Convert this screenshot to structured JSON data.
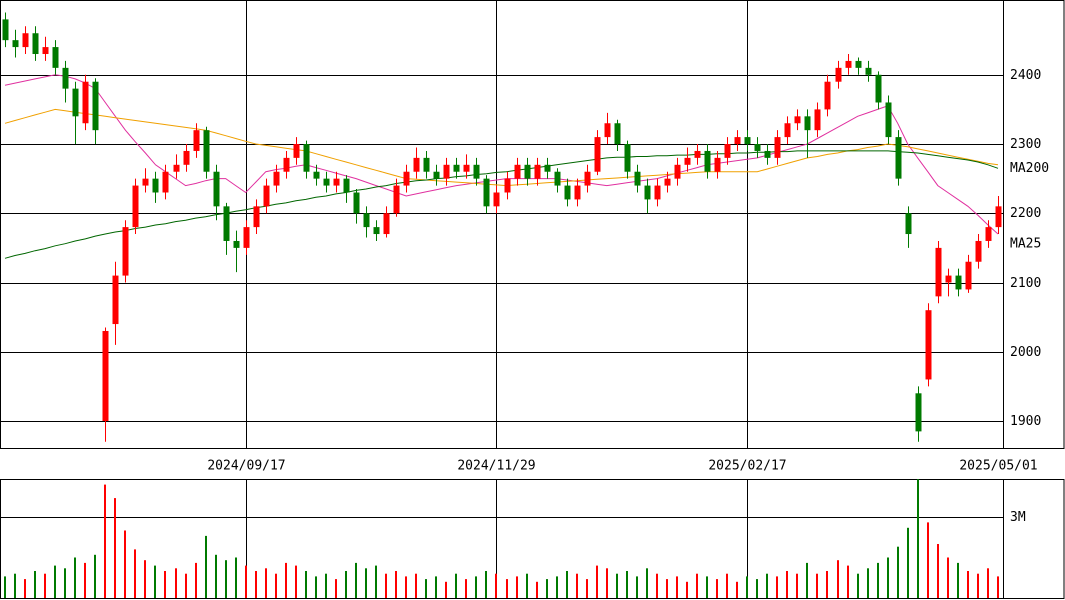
{
  "chart_data": {
    "type": "candlestick",
    "categories": [
      null,
      null,
      null,
      null,
      null,
      null,
      null,
      null,
      null,
      null,
      null,
      null,
      null,
      null,
      null,
      null,
      null,
      null,
      null,
      null,
      null,
      null,
      null,
      null,
      "2024/09/17",
      null,
      null,
      null,
      null,
      null,
      null,
      null,
      null,
      null,
      null,
      null,
      null,
      null,
      null,
      null,
      null,
      null,
      null,
      null,
      null,
      null,
      null,
      null,
      null,
      "2024/11/29",
      null,
      null,
      null,
      null,
      null,
      null,
      null,
      null,
      null,
      null,
      null,
      null,
      null,
      null,
      null,
      null,
      null,
      null,
      null,
      null,
      null,
      null,
      null,
      null,
      "2025/02/17",
      null,
      null,
      null,
      null,
      null,
      null,
      null,
      null,
      null,
      null,
      null,
      null,
      null,
      null,
      null,
      null,
      null,
      null,
      null,
      null,
      null,
      null,
      null,
      null,
      "2025/05/01"
    ],
    "open": [
      2480,
      2450,
      2440,
      2460,
      2430,
      2440,
      2410,
      2380,
      2330,
      2390,
      1900,
      2040,
      2110,
      2180,
      2240,
      2250,
      2230,
      2260,
      2270,
      2290,
      2320,
      2260,
      2210,
      2160,
      2150,
      2180,
      2210,
      2240,
      2260,
      2280,
      2300,
      2260,
      2250,
      2240,
      2250,
      2230,
      2200,
      2180,
      2170,
      2200,
      2240,
      2260,
      2280,
      2260,
      2250,
      2270,
      2260,
      2270,
      2250,
      2210,
      2230,
      2250,
      2270,
      2250,
      2270,
      2260,
      2240,
      2220,
      2240,
      2260,
      2310,
      2330,
      2300,
      2260,
      2240,
      2220,
      2240,
      2250,
      2270,
      2280,
      2290,
      2260,
      2280,
      2300,
      2310,
      2300,
      2290,
      2280,
      2310,
      2330,
      2340,
      2320,
      2350,
      2390,
      2410,
      2420,
      2410,
      2400,
      2360,
      2310,
      2200,
      1940,
      1960,
      2080,
      2100,
      2110,
      2090,
      2130,
      2160,
      2180
    ],
    "close": [
      2450,
      2440,
      2460,
      2430,
      2440,
      2410,
      2380,
      2340,
      2390,
      2320,
      2030,
      2110,
      2180,
      2240,
      2250,
      2230,
      2260,
      2270,
      2290,
      2320,
      2260,
      2210,
      2160,
      2150,
      2180,
      2210,
      2240,
      2260,
      2280,
      2300,
      2260,
      2250,
      2240,
      2250,
      2230,
      2200,
      2180,
      2170,
      2200,
      2240,
      2260,
      2280,
      2260,
      2250,
      2270,
      2260,
      2270,
      2250,
      2210,
      2230,
      2250,
      2270,
      2250,
      2270,
      2260,
      2240,
      2220,
      2240,
      2260,
      2310,
      2330,
      2300,
      2260,
      2240,
      2220,
      2240,
      2250,
      2270,
      2280,
      2290,
      2260,
      2280,
      2300,
      2310,
      2300,
      2290,
      2280,
      2310,
      2330,
      2340,
      2320,
      2350,
      2390,
      2410,
      2420,
      2410,
      2400,
      2360,
      2310,
      2250,
      2170,
      1885,
      2060,
      2150,
      2110,
      2090,
      2130,
      2160,
      2180,
      2210
    ],
    "high": [
      2490,
      2465,
      2470,
      2470,
      2455,
      2450,
      2420,
      2390,
      2400,
      2395,
      2035,
      2130,
      2190,
      2250,
      2265,
      2260,
      2270,
      2285,
      2300,
      2330,
      2325,
      2270,
      2215,
      2175,
      2190,
      2220,
      2250,
      2270,
      2290,
      2310,
      2305,
      2270,
      2260,
      2260,
      2255,
      2235,
      2210,
      2190,
      2210,
      2250,
      2270,
      2295,
      2290,
      2270,
      2280,
      2280,
      2285,
      2280,
      2255,
      2240,
      2260,
      2280,
      2280,
      2280,
      2280,
      2265,
      2250,
      2250,
      2270,
      2320,
      2345,
      2335,
      2305,
      2270,
      2250,
      2250,
      2260,
      2280,
      2295,
      2300,
      2300,
      2290,
      2310,
      2320,
      2320,
      2310,
      2300,
      2320,
      2340,
      2350,
      2350,
      2360,
      2400,
      2420,
      2430,
      2425,
      2420,
      2405,
      2370,
      2320,
      2210,
      1950,
      2070,
      2160,
      2120,
      2120,
      2140,
      2170,
      2190,
      2225
    ],
    "low": [
      2440,
      2425,
      2430,
      2420,
      2420,
      2400,
      2360,
      2300,
      2320,
      2300,
      1870,
      2010,
      2100,
      2170,
      2230,
      2215,
      2220,
      2250,
      2260,
      2280,
      2250,
      2190,
      2140,
      2115,
      2140,
      2170,
      2200,
      2230,
      2250,
      2270,
      2250,
      2240,
      2230,
      2230,
      2215,
      2185,
      2165,
      2160,
      2165,
      2195,
      2230,
      2250,
      2250,
      2240,
      2240,
      2250,
      2250,
      2240,
      2200,
      2200,
      2220,
      2240,
      2240,
      2240,
      2250,
      2230,
      2210,
      2210,
      2230,
      2255,
      2300,
      2290,
      2250,
      2230,
      2200,
      2210,
      2230,
      2240,
      2260,
      2270,
      2250,
      2250,
      2270,
      2290,
      2290,
      2280,
      2270,
      2270,
      2300,
      2320,
      2280,
      2310,
      2340,
      2380,
      2400,
      2400,
      2390,
      2350,
      2300,
      2240,
      2150,
      1870,
      1950,
      2070,
      2080,
      2080,
      2085,
      2120,
      2150,
      2170
    ],
    "up_color": "#ff0000",
    "down_color": "#007a00",
    "ylim": [
      1861,
      2508
    ],
    "yticks": [
      1900,
      2000,
      2100,
      2200,
      2300,
      2400
    ],
    "grid": true,
    "series": [
      {
        "name": "MA25",
        "color": "#e0309f",
        "values": [
          2385,
          2388,
          2391,
          2394,
          2397,
          2400,
          2398,
          2394,
          2388,
          2380,
          2360,
          2340,
          2320,
          2303,
          2287,
          2270,
          2260,
          2250,
          2240,
          2243,
          2247,
          2250,
          2250,
          2240,
          2230,
          2245,
          2260,
          2263,
          2265,
          2268,
          2270,
          2266,
          2262,
          2258,
          2254,
          2250,
          2245,
          2240,
          2235,
          2230,
          2225,
          2228,
          2231,
          2234,
          2237,
          2240,
          2242,
          2244,
          2246,
          2248,
          2250,
          2250,
          2250,
          2250,
          2250,
          2250,
          2248,
          2246,
          2244,
          2242,
          2240,
          2242,
          2244,
          2246,
          2248,
          2250,
          2254,
          2258,
          2262,
          2266,
          2270,
          2272,
          2274,
          2276,
          2278,
          2280,
          2284,
          2288,
          2292,
          2296,
          2300,
          2308,
          2316,
          2324,
          2332,
          2340,
          2345,
          2350,
          2355,
          2330,
          2300,
          2280,
          2260,
          2240,
          2230,
          2220,
          2210,
          2197,
          2183,
          2170
        ]
      },
      {
        "color": "#f0a000",
        "values": [
          2330,
          2334,
          2338,
          2342,
          2346,
          2350,
          2348,
          2346,
          2344,
          2342,
          2340,
          2338,
          2336,
          2334,
          2332,
          2330,
          2328,
          2326,
          2324,
          2322,
          2320,
          2316,
          2312,
          2308,
          2304,
          2300,
          2298,
          2296,
          2294,
          2292,
          2290,
          2286,
          2282,
          2278,
          2274,
          2270,
          2266,
          2262,
          2258,
          2254,
          2250,
          2249,
          2248,
          2247,
          2246,
          2245,
          2244,
          2243,
          2242,
          2241,
          2240,
          2241,
          2242,
          2243,
          2244,
          2245,
          2246,
          2247,
          2248,
          2249,
          2250,
          2251,
          2252,
          2253,
          2254,
          2255,
          2256,
          2257,
          2258,
          2259,
          2260,
          2260,
          2260,
          2260,
          2260,
          2260,
          2264,
          2268,
          2272,
          2276,
          2280,
          2282,
          2285,
          2287,
          2290,
          2292,
          2295,
          2297,
          2300,
          2298,
          2296,
          2293,
          2290,
          2287,
          2284,
          2281,
          2278,
          2275,
          2272,
          2270
        ]
      },
      {
        "name": "MA200",
        "color": "#006600",
        "values": [
          2135,
          2139,
          2142,
          2146,
          2149,
          2153,
          2156,
          2160,
          2163,
          2167,
          2170,
          2173,
          2175,
          2178,
          2180,
          2183,
          2185,
          2188,
          2190,
          2193,
          2195,
          2198,
          2200,
          2203,
          2205,
          2208,
          2210,
          2213,
          2215,
          2218,
          2220,
          2223,
          2225,
          2228,
          2230,
          2233,
          2235,
          2238,
          2240,
          2243,
          2245,
          2247,
          2248,
          2250,
          2251,
          2253,
          2254,
          2256,
          2257,
          2259,
          2260,
          2262,
          2264,
          2266,
          2268,
          2270,
          2272,
          2274,
          2276,
          2278,
          2280,
          2281,
          2281,
          2282,
          2282,
          2283,
          2283,
          2284,
          2284,
          2285,
          2285,
          2286,
          2286,
          2287,
          2287,
          2288,
          2288,
          2289,
          2289,
          2290,
          2290,
          2290,
          2290,
          2290,
          2290,
          2290,
          2290,
          2290,
          2290,
          2289,
          2288,
          2287,
          2285,
          2283,
          2281,
          2279,
          2277,
          2274,
          2270,
          2265
        ]
      }
    ],
    "volume": {
      "values": [
        800000,
        900000,
        700000,
        1000000,
        900000,
        1200000,
        1100000,
        1500000,
        1300000,
        1600000,
        4200000,
        3700000,
        2500000,
        1800000,
        1400000,
        1200000,
        1000000,
        1100000,
        900000,
        1300000,
        2300000,
        1600000,
        1400000,
        1500000,
        1200000,
        1000000,
        1100000,
        900000,
        1300000,
        1200000,
        1000000,
        800000,
        900000,
        700000,
        1000000,
        1300000,
        1100000,
        1200000,
        900000,
        1000000,
        800000,
        900000,
        700000,
        800000,
        600000,
        900000,
        700000,
        800000,
        1000000,
        900000,
        700000,
        800000,
        900000,
        600000,
        700000,
        800000,
        1000000,
        900000,
        700000,
        1200000,
        1100000,
        900000,
        1000000,
        800000,
        1100000,
        900000,
        700000,
        800000,
        600000,
        900000,
        800000,
        700000,
        900000,
        600000,
        800000,
        700000,
        900000,
        800000,
        1000000,
        900000,
        1300000,
        900000,
        1000000,
        1400000,
        1200000,
        900000,
        1100000,
        1300000,
        1500000,
        1900000,
        2600000,
        4400000,
        2800000,
        2000000,
        1500000,
        1300000,
        1000000,
        900000,
        1100000,
        800000
      ],
      "ylim": [
        0,
        4370000
      ],
      "yticks": [
        {
          "value": 3000000,
          "label": "3M"
        }
      ]
    }
  }
}
